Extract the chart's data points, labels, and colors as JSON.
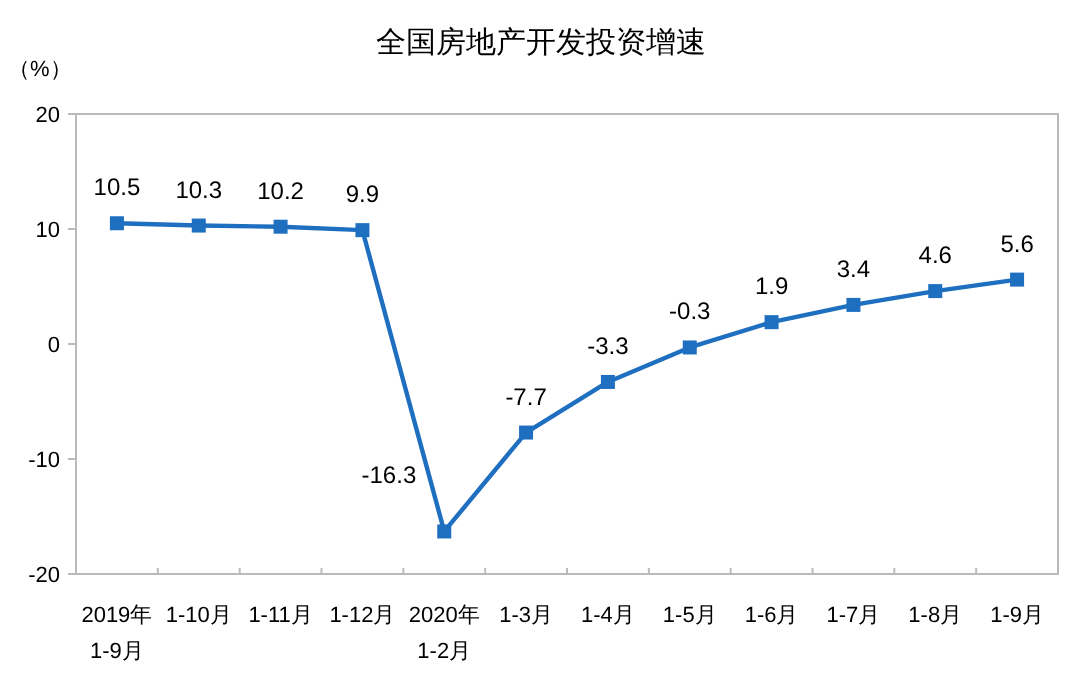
{
  "chart_data": {
    "type": "line",
    "title": "全国房地产开发投资增速",
    "ylabel": "（%）",
    "categories": [
      "2019年\n1-9月",
      "1-10月",
      "1-11月",
      "1-12月",
      "2020年\n1-2月",
      "1-3月",
      "1-4月",
      "1-5月",
      "1-6月",
      "1-7月",
      "1-8月",
      "1-9月"
    ],
    "series": [
      {
        "color": "#1f6fc0",
        "values": [
          10.5,
          10.3,
          10.2,
          9.9,
          -16.3,
          -7.7,
          -3.3,
          -0.3,
          1.9,
          3.4,
          4.6,
          5.6
        ]
      }
    ],
    "ylim": [
      -20,
      20
    ],
    "yticks": [
      -20,
      -10,
      0,
      10,
      20
    ],
    "marker": "square",
    "data_labels": true
  }
}
